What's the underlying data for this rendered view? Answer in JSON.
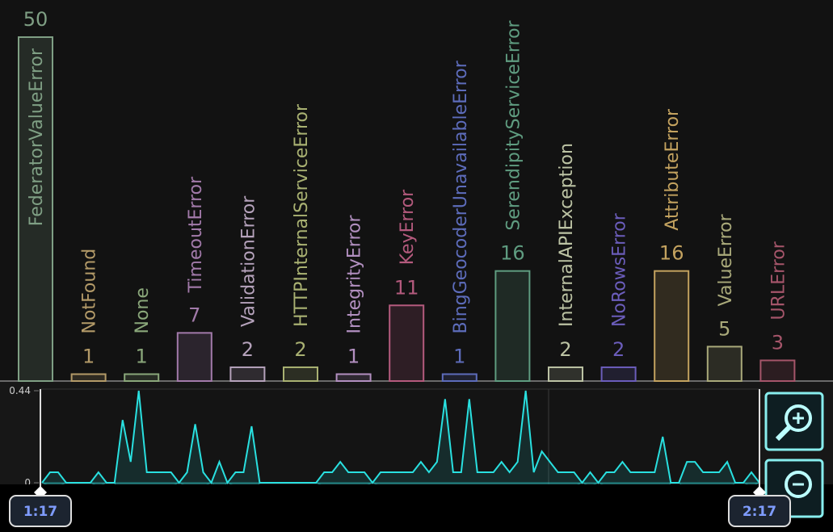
{
  "chart_data": [
    {
      "type": "bar",
      "categories": [
        "FederatorValueError",
        "NotFound",
        "None",
        "TimeoutError",
        "ValidationError",
        "HTTPInternalServiceError",
        "IntegrityError",
        "KeyError",
        "BingGeocoderUnavailableError",
        "SerendipityServiceError",
        "InternalAPIException",
        "NoRowsError",
        "AttributeError",
        "ValueError",
        "URLError"
      ],
      "values": [
        50,
        1,
        1,
        7,
        2,
        2,
        1,
        11,
        1,
        16,
        2,
        2,
        16,
        5,
        3
      ],
      "colors": [
        "#7f9f84",
        "#b39a68",
        "#8aa77a",
        "#a27aaa",
        "#b5a2bb",
        "#a9b172",
        "#b28fc0",
        "#b45a7d",
        "#5d6cbb",
        "#5f9c80",
        "#bcc3a4",
        "#6b5dbb",
        "#c3a25f",
        "#a9a97a",
        "#a5556a"
      ]
    },
    {
      "type": "line",
      "values": [
        0,
        0.05,
        0.05,
        0,
        0,
        0,
        0,
        0.05,
        0,
        0,
        0.3,
        0.1,
        0.44,
        0.05,
        0.05,
        0.05,
        0.05,
        0,
        0.05,
        0.28,
        0.05,
        0,
        0.1,
        0,
        0.05,
        0.05,
        0.27,
        0,
        0,
        0,
        0,
        0,
        0,
        0,
        0,
        0.05,
        0.05,
        0.1,
        0.05,
        0.05,
        0.05,
        0,
        0.05,
        0.05,
        0.05,
        0.05,
        0.05,
        0.1,
        0.05,
        0.1,
        0.4,
        0.05,
        0.05,
        0.4,
        0.05,
        0.05,
        0.05,
        0.1,
        0.05,
        0.1,
        0.44,
        0.05,
        0.15,
        0.1,
        0.05,
        0.05,
        0.05,
        0,
        0.05,
        0,
        0.05,
        0.05,
        0.1,
        0.05,
        0.05,
        0.05,
        0.05,
        0.22,
        0,
        0,
        0.1,
        0.1,
        0.05,
        0.05,
        0.05,
        0.1,
        0,
        0,
        0.05,
        0
      ],
      "color": "#29e0e0",
      "ylim": [
        0,
        0.44
      ],
      "yticks": [
        0,
        0.44
      ]
    }
  ],
  "timeline": {
    "start": "1:17",
    "end": "2:17"
  }
}
